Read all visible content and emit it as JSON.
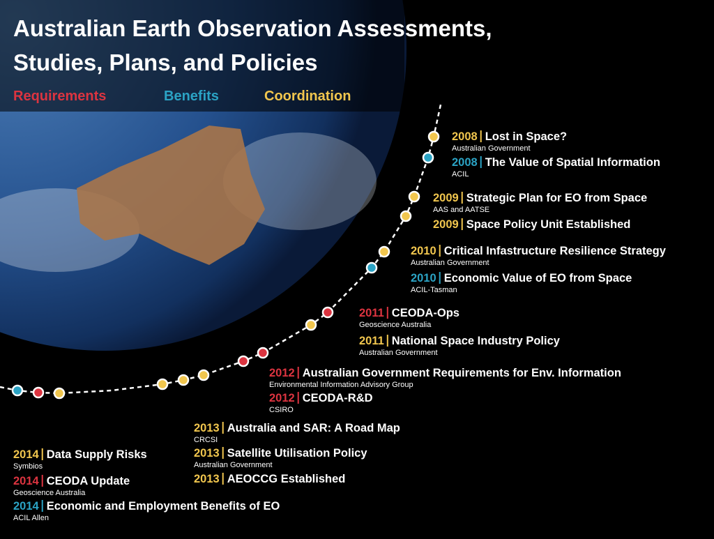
{
  "header": {
    "title_lines": [
      "Australian Earth Observation Assessments,",
      "Studies, Plans, and Policies"
    ]
  },
  "legend": [
    {
      "label": "Requirements",
      "color": "#dc3440"
    },
    {
      "label": "Benefits",
      "color": "#2ba3c4"
    },
    {
      "label": "Coordination",
      "color": "#f1c64e"
    }
  ],
  "entries": [
    {
      "year": "2008",
      "title": "Lost in Space?",
      "org": "Australian Government",
      "color": "#f1c64e"
    },
    {
      "year": "2008",
      "title": "The Value of Spatial Information",
      "org": "ACIL",
      "color": "#2ba3c4"
    },
    {
      "year": "2009",
      "title": "Strategic Plan for EO from Space",
      "org": "AAS and AATSE",
      "color": "#f1c64e"
    },
    {
      "year": "2009",
      "title": "Space Policy Unit Established",
      "color": "#f1c64e"
    },
    {
      "year": "2010",
      "title": "Critical Infastructure Resilience Strategy",
      "org": "Australian Government",
      "color": "#f1c64e"
    },
    {
      "year": "2010",
      "title": "Economic Value of EO from Space",
      "org": "ACIL-Tasman",
      "color": "#2ba3c4"
    },
    {
      "year": "2011",
      "title": "CEODA-Ops",
      "org": "Geoscience Australia",
      "color": "#dc3440"
    },
    {
      "year": "2011",
      "title": "National Space Industry Policy",
      "org": "Australian Government",
      "color": "#f1c64e"
    },
    {
      "year": "2012",
      "title": "Australian Government Requirements for Env. Information",
      "org": "Environmental Information Advisory Group",
      "color": "#dc3440"
    },
    {
      "year": "2012",
      "title": "CEODA-R&D",
      "org": "CSIRO",
      "color": "#dc3440"
    },
    {
      "year": "2013",
      "title": "Australia and SAR: A Road Map",
      "org": "CRCSI",
      "color": "#f1c64e"
    },
    {
      "year": "2013",
      "title": "Satellite Utilisation Policy",
      "org": "Australian Government",
      "color": "#f1c64e"
    },
    {
      "year": "2013",
      "title": "AEOCCG Established",
      "color": "#f1c64e"
    },
    {
      "year": "2014",
      "title": "Data Supply Risks",
      "org": "Symbios",
      "color": "#f1c64e"
    },
    {
      "year": "2014",
      "title": "CEODA Update",
      "org": "Geoscience Australia",
      "color": "#dc3440"
    },
    {
      "year": "2014",
      "title": "Economic and Employment Benefits of EO",
      "org": "ACIL Allen",
      "color": "#2ba3c4"
    }
  ]
}
